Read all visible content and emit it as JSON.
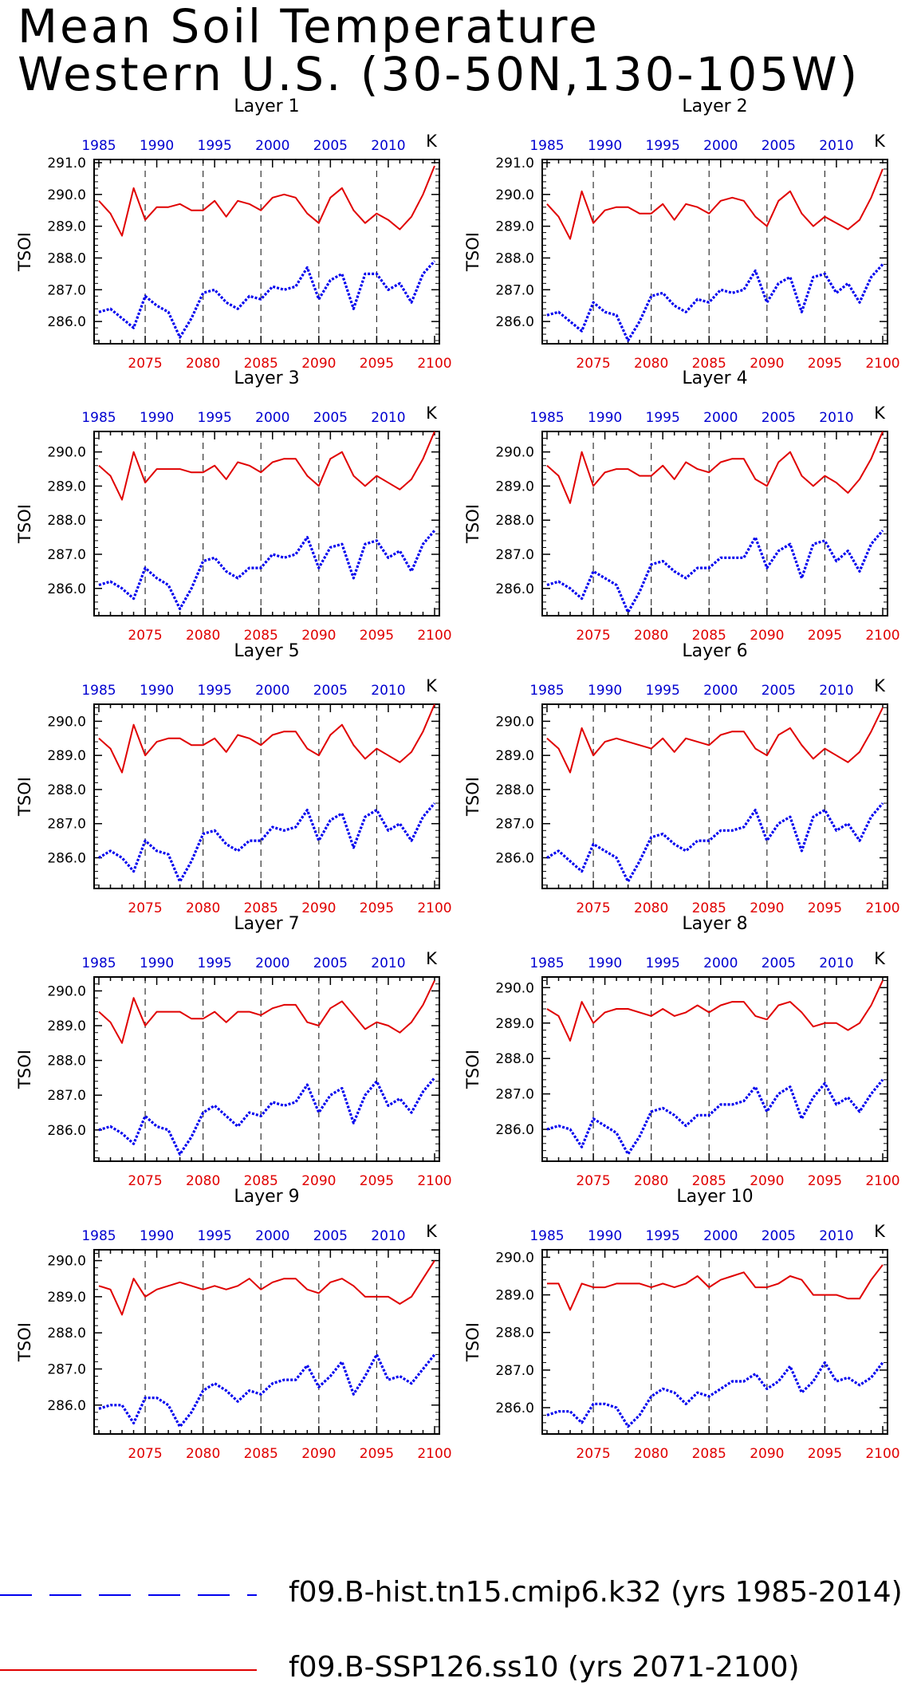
{
  "title_line1": "Mean Soil Temperature",
  "title_line2": "Western U.S. (30-50N,130-105W)",
  "chart_data": {
    "type": "line",
    "panels": [
      "Layer 1",
      "Layer 2",
      "Layer 3",
      "Layer 4",
      "Layer 5",
      "Layer 6",
      "Layer 7",
      "Layer 8",
      "Layer 9",
      "Layer 10"
    ],
    "ylabel": "TSOI",
    "units": "K",
    "x_bottom": {
      "range": [
        2071,
        2100
      ],
      "ticks": [
        2075,
        2080,
        2085,
        2090,
        2095,
        2100
      ],
      "color": "#e00000"
    },
    "x_top": {
      "range": [
        1985,
        2014
      ],
      "ticks": [
        1985,
        1990,
        1995,
        2000,
        2005,
        2010
      ],
      "color": "#0000d0"
    },
    "ytick_labels": [
      [
        "286.0",
        "287.0",
        "288.0",
        "289.0",
        "290.0",
        "291.0"
      ],
      [
        "286.0",
        "287.0",
        "288.0",
        "289.0",
        "290.0",
        "291.0"
      ],
      [
        "286.0",
        "287.0",
        "288.0",
        "289.0",
        "290.0"
      ],
      [
        "286.0",
        "287.0",
        "288.0",
        "289.0",
        "290.0"
      ],
      [
        "286.0",
        "287.0",
        "288.0",
        "289.0",
        "290.0"
      ],
      [
        "286.0",
        "287.0",
        "288.0",
        "289.0",
        "290.0"
      ],
      [
        "286.0",
        "287.0",
        "288.0",
        "289.0",
        "290.0"
      ],
      [
        "286.0",
        "287.0",
        "288.0",
        "289.0",
        "290.0"
      ],
      [
        "286.0",
        "287.0",
        "288.0",
        "289.0",
        "290.0"
      ],
      [
        "286.0",
        "287.0",
        "288.0",
        "289.0",
        "290.0"
      ]
    ],
    "ylims": [
      [
        285.3,
        291.1
      ],
      [
        285.3,
        291.1
      ],
      [
        285.2,
        290.6
      ],
      [
        285.2,
        290.6
      ],
      [
        285.1,
        290.5
      ],
      [
        285.1,
        290.5
      ],
      [
        285.1,
        290.4
      ],
      [
        285.1,
        290.3
      ],
      [
        285.2,
        290.3
      ],
      [
        285.3,
        290.2
      ]
    ],
    "grid": "dashed vertical lines at 2075, 2080, 2085, 2090, 2095",
    "legend_position": "bottom",
    "series": [
      {
        "name": "f09.B-hist.tn15.cmip6.k32 (yrs 1985-2014)",
        "color": "#0000ee",
        "style": "dashed-dotted",
        "panels": [
          [
            286.3,
            286.4,
            286.1,
            285.8,
            286.8,
            286.5,
            286.3,
            285.5,
            286.1,
            286.9,
            287.0,
            286.6,
            286.4,
            286.8,
            286.7,
            287.1,
            287.0,
            287.1,
            287.7,
            286.7,
            287.3,
            287.5,
            286.4,
            287.5,
            287.5,
            287.0,
            287.2,
            286.6,
            287.5,
            287.9
          ],
          [
            286.2,
            286.3,
            286.0,
            285.7,
            286.6,
            286.3,
            286.2,
            285.4,
            286.0,
            286.8,
            286.9,
            286.5,
            286.3,
            286.7,
            286.6,
            287.0,
            286.9,
            287.0,
            287.6,
            286.6,
            287.2,
            287.4,
            286.3,
            287.4,
            287.5,
            286.9,
            287.2,
            286.6,
            287.4,
            287.8
          ],
          [
            286.1,
            286.2,
            286.0,
            285.7,
            286.6,
            286.3,
            286.1,
            285.4,
            286.0,
            286.8,
            286.9,
            286.5,
            286.3,
            286.6,
            286.6,
            287.0,
            286.9,
            287.0,
            287.5,
            286.6,
            287.2,
            287.3,
            286.3,
            287.3,
            287.4,
            286.9,
            287.1,
            286.5,
            287.3,
            287.7
          ],
          [
            286.1,
            286.2,
            286.0,
            285.7,
            286.5,
            286.3,
            286.1,
            285.3,
            285.9,
            286.7,
            286.8,
            286.5,
            286.3,
            286.6,
            286.6,
            286.9,
            286.9,
            286.9,
            287.5,
            286.6,
            287.1,
            287.3,
            286.3,
            287.3,
            287.4,
            286.8,
            287.1,
            286.5,
            287.3,
            287.7
          ],
          [
            286.0,
            286.2,
            286.0,
            285.6,
            286.5,
            286.2,
            286.1,
            285.3,
            285.9,
            286.7,
            286.8,
            286.4,
            286.2,
            286.5,
            286.5,
            286.9,
            286.8,
            286.9,
            287.4,
            286.5,
            287.1,
            287.3,
            286.3,
            287.2,
            287.4,
            286.8,
            287.0,
            286.5,
            287.2,
            287.6
          ],
          [
            286.0,
            286.2,
            285.9,
            285.6,
            286.4,
            286.2,
            286.0,
            285.3,
            285.9,
            286.6,
            286.7,
            286.4,
            286.2,
            286.5,
            286.5,
            286.8,
            286.8,
            286.9,
            287.4,
            286.5,
            287.0,
            287.2,
            286.2,
            287.2,
            287.4,
            286.8,
            287.0,
            286.5,
            287.2,
            287.6
          ],
          [
            286.0,
            286.1,
            285.9,
            285.6,
            286.4,
            286.1,
            286.0,
            285.3,
            285.8,
            286.5,
            286.7,
            286.4,
            286.1,
            286.5,
            286.4,
            286.8,
            286.7,
            286.8,
            287.3,
            286.5,
            287.0,
            287.2,
            286.2,
            287.0,
            287.4,
            286.7,
            286.9,
            286.5,
            287.1,
            287.5
          ],
          [
            286.0,
            286.1,
            286.0,
            285.5,
            286.3,
            286.1,
            285.9,
            285.3,
            285.8,
            286.5,
            286.6,
            286.4,
            286.1,
            286.4,
            286.4,
            286.7,
            286.7,
            286.8,
            287.2,
            286.5,
            287.0,
            287.2,
            286.3,
            286.9,
            287.3,
            286.7,
            286.9,
            286.5,
            287.0,
            287.4
          ],
          [
            285.9,
            286.0,
            286.0,
            285.5,
            286.2,
            286.2,
            286.0,
            285.4,
            285.8,
            286.4,
            286.6,
            286.4,
            286.1,
            286.4,
            286.3,
            286.6,
            286.7,
            286.7,
            287.1,
            286.5,
            286.8,
            287.2,
            286.3,
            286.8,
            287.4,
            286.7,
            286.8,
            286.6,
            287.0,
            287.4
          ],
          [
            285.8,
            285.9,
            285.9,
            285.6,
            286.1,
            286.1,
            286.0,
            285.5,
            285.8,
            286.3,
            286.5,
            286.4,
            286.1,
            286.4,
            286.3,
            286.5,
            286.7,
            286.7,
            286.9,
            286.5,
            286.7,
            287.1,
            286.4,
            286.7,
            287.2,
            286.7,
            286.8,
            286.6,
            286.8,
            287.2
          ]
        ]
      },
      {
        "name": "f09.B-SSP126.ss10 (yrs 2071-2100)",
        "color": "#e00000",
        "style": "solid",
        "panels": [
          [
            289.8,
            289.4,
            288.7,
            290.2,
            289.2,
            289.6,
            289.6,
            289.7,
            289.5,
            289.5,
            289.8,
            289.3,
            289.8,
            289.7,
            289.5,
            289.9,
            290.0,
            289.9,
            289.4,
            289.1,
            289.9,
            290.2,
            289.5,
            289.1,
            289.4,
            289.2,
            288.9,
            289.3,
            290.0,
            290.9
          ],
          [
            289.7,
            289.3,
            288.6,
            290.1,
            289.1,
            289.5,
            289.6,
            289.6,
            289.4,
            289.4,
            289.7,
            289.2,
            289.7,
            289.6,
            289.4,
            289.8,
            289.9,
            289.8,
            289.3,
            289.0,
            289.8,
            290.1,
            289.4,
            289.0,
            289.3,
            289.1,
            288.9,
            289.2,
            289.9,
            290.8
          ],
          [
            289.6,
            289.3,
            288.6,
            290.0,
            289.1,
            289.5,
            289.5,
            289.5,
            289.4,
            289.4,
            289.6,
            289.2,
            289.7,
            289.6,
            289.4,
            289.7,
            289.8,
            289.8,
            289.3,
            289.0,
            289.8,
            290.0,
            289.3,
            289.0,
            289.3,
            289.1,
            288.9,
            289.2,
            289.8,
            290.6
          ],
          [
            289.6,
            289.3,
            288.5,
            290.0,
            289.0,
            289.4,
            289.5,
            289.5,
            289.3,
            289.3,
            289.6,
            289.2,
            289.7,
            289.5,
            289.4,
            289.7,
            289.8,
            289.8,
            289.2,
            289.0,
            289.7,
            290.0,
            289.3,
            289.0,
            289.3,
            289.1,
            288.8,
            289.2,
            289.8,
            290.6
          ],
          [
            289.5,
            289.2,
            288.5,
            289.9,
            289.0,
            289.4,
            289.5,
            289.5,
            289.3,
            289.3,
            289.5,
            289.1,
            289.6,
            289.5,
            289.3,
            289.6,
            289.7,
            289.7,
            289.2,
            289.0,
            289.6,
            289.9,
            289.3,
            288.9,
            289.2,
            289.0,
            288.8,
            289.1,
            289.7,
            290.5
          ],
          [
            289.5,
            289.2,
            288.5,
            289.8,
            289.0,
            289.4,
            289.5,
            289.4,
            289.3,
            289.2,
            289.5,
            289.1,
            289.5,
            289.4,
            289.3,
            289.6,
            289.7,
            289.7,
            289.2,
            289.0,
            289.6,
            289.8,
            289.3,
            288.9,
            289.2,
            289.0,
            288.8,
            289.1,
            289.7,
            290.4
          ],
          [
            289.4,
            289.1,
            288.5,
            289.8,
            289.0,
            289.4,
            289.4,
            289.4,
            289.2,
            289.2,
            289.4,
            289.1,
            289.4,
            289.4,
            289.3,
            289.5,
            289.6,
            289.6,
            289.1,
            289.0,
            289.5,
            289.7,
            289.3,
            288.9,
            289.1,
            289.0,
            288.8,
            289.1,
            289.6,
            290.3
          ],
          [
            289.4,
            289.2,
            288.5,
            289.6,
            289.0,
            289.3,
            289.4,
            289.4,
            289.3,
            289.2,
            289.4,
            289.2,
            289.3,
            289.5,
            289.3,
            289.5,
            289.6,
            289.6,
            289.2,
            289.1,
            289.5,
            289.6,
            289.3,
            288.9,
            289.0,
            289.0,
            288.8,
            289.0,
            289.5,
            290.2
          ],
          [
            289.3,
            289.2,
            288.5,
            289.5,
            289.0,
            289.2,
            289.3,
            289.4,
            289.3,
            289.2,
            289.3,
            289.2,
            289.3,
            289.5,
            289.2,
            289.4,
            289.5,
            289.5,
            289.2,
            289.1,
            289.4,
            289.5,
            289.3,
            289.0,
            289.0,
            289.0,
            288.8,
            289.0,
            289.5,
            290.0
          ],
          [
            289.3,
            289.3,
            288.6,
            289.3,
            289.2,
            289.2,
            289.3,
            289.3,
            289.3,
            289.2,
            289.3,
            289.2,
            289.3,
            289.5,
            289.2,
            289.4,
            289.5,
            289.6,
            289.2,
            289.2,
            289.3,
            289.5,
            289.4,
            289.0,
            289.0,
            289.0,
            288.9,
            288.9,
            289.4,
            289.8
          ]
        ]
      }
    ]
  },
  "legend": {
    "hist_label": "f09.B-hist.tn15.cmip6.k32 (yrs 1985-2014)",
    "ssp_label": "f09.B-SSP126.ss10 (yrs 2071-2100)"
  }
}
